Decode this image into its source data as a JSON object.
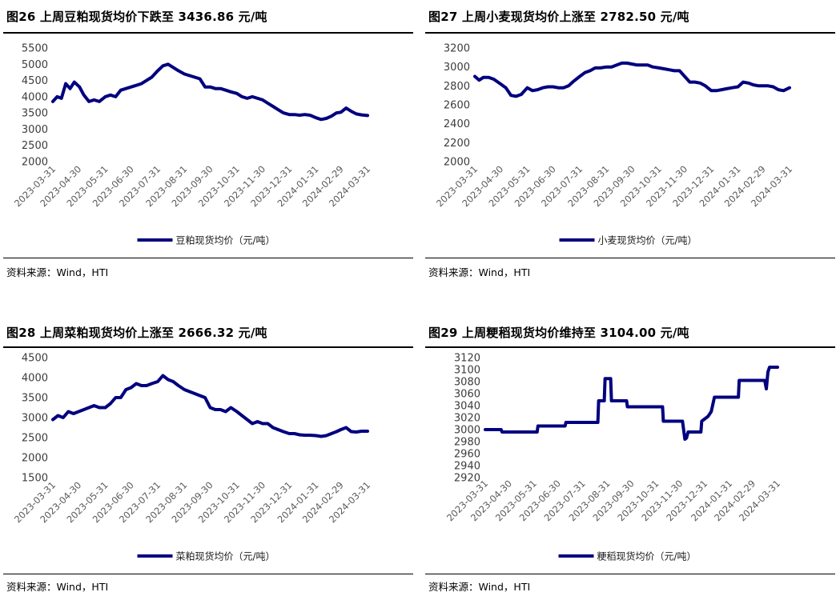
{
  "source_label": "资料来源：Wind，HTI",
  "line_color": "#00007F",
  "charts": [
    {
      "title": "图26 上周豆粕现货均价下跌至 3436.86 元/吨",
      "chart_data": {
        "type": "line",
        "title": "图26 上周豆粕现货均价下跌至 3436.86 元/吨",
        "x_tick_labels": [
          "2023-03-31",
          "2023-04-30",
          "2023-05-31",
          "2023-06-30",
          "2023-07-31",
          "2023-08-31",
          "2023-09-30",
          "2023-10-31",
          "2023-11-30",
          "2023-12-31",
          "2024-01-31",
          "2024-02-29",
          "2024-03-31"
        ],
        "y_ticks": [
          2000,
          2500,
          3000,
          3500,
          4000,
          4500,
          5000,
          5500
        ],
        "ylim": [
          2000,
          5500
        ],
        "grid": false,
        "legend_position": "bottom",
        "series": [
          {
            "name": "豆粕现货均价（元/吨）",
            "x": [
              "2023-03-31",
              "2023-04-05",
              "2023-04-10",
              "2023-04-15",
              "2023-04-20",
              "2023-04-25",
              "2023-05-01",
              "2023-05-06",
              "2023-05-12",
              "2023-05-18",
              "2023-05-24",
              "2023-05-31",
              "2023-06-06",
              "2023-06-12",
              "2023-06-18",
              "2023-06-24",
              "2023-06-30",
              "2023-07-06",
              "2023-07-12",
              "2023-07-18",
              "2023-07-24",
              "2023-07-31",
              "2023-08-06",
              "2023-08-12",
              "2023-08-18",
              "2023-08-24",
              "2023-08-31",
              "2023-09-06",
              "2023-09-12",
              "2023-09-18",
              "2023-09-24",
              "2023-09-30",
              "2023-10-06",
              "2023-10-12",
              "2023-10-18",
              "2023-10-24",
              "2023-10-31",
              "2023-11-06",
              "2023-11-12",
              "2023-11-18",
              "2023-11-24",
              "2023-11-30",
              "2023-12-06",
              "2023-12-12",
              "2023-12-18",
              "2023-12-24",
              "2023-12-31",
              "2024-01-06",
              "2024-01-12",
              "2024-01-18",
              "2024-01-24",
              "2024-01-31",
              "2024-02-06",
              "2024-02-12",
              "2024-02-18",
              "2024-02-24",
              "2024-02-29",
              "2024-03-06",
              "2024-03-12",
              "2024-03-18",
              "2024-03-24",
              "2024-03-31"
            ],
            "y": [
              3850,
              4000,
              3950,
              4400,
              4250,
              4450,
              4300,
              4050,
              3850,
              3900,
              3850,
              4000,
              4050,
              4000,
              4200,
              4250,
              4300,
              4350,
              4400,
              4500,
              4600,
              4800,
              4950,
              5000,
              4900,
              4800,
              4700,
              4650,
              4600,
              4550,
              4300,
              4300,
              4250,
              4250,
              4200,
              4150,
              4100,
              4000,
              3950,
              4000,
              3950,
              3900,
              3800,
              3700,
              3600,
              3500,
              3450,
              3450,
              3430,
              3450,
              3430,
              3350,
              3300,
              3330,
              3400,
              3500,
              3520,
              3650,
              3550,
              3470,
              3440,
              3420
            ]
          }
        ]
      }
    },
    {
      "title": "图27 上周小麦现货均价上涨至 2782.50 元/吨",
      "chart_data": {
        "type": "line",
        "title": "图27 上周小麦现货均价上涨至 2782.50 元/吨",
        "x_tick_labels": [
          "2023-03-31",
          "2023-04-30",
          "2023-05-31",
          "2023-06-30",
          "2023-07-31",
          "2023-08-31",
          "2023-09-30",
          "2023-10-31",
          "2023-11-30",
          "2023-12-31",
          "2024-01-31",
          "2024-02-29",
          "2024-03-31"
        ],
        "y_ticks": [
          2000,
          2200,
          2400,
          2600,
          2800,
          3000,
          3200
        ],
        "ylim": [
          2000,
          3200
        ],
        "grid": false,
        "legend_position": "bottom",
        "series": [
          {
            "name": "小麦现货均价（元/吨）",
            "x": [
              "2023-03-31",
              "2023-04-05",
              "2023-04-10",
              "2023-04-16",
              "2023-04-22",
              "2023-04-30",
              "2023-05-06",
              "2023-05-12",
              "2023-05-18",
              "2023-05-24",
              "2023-05-31",
              "2023-06-06",
              "2023-06-12",
              "2023-06-18",
              "2023-06-24",
              "2023-06-30",
              "2023-07-06",
              "2023-07-12",
              "2023-07-18",
              "2023-07-24",
              "2023-07-31",
              "2023-08-06",
              "2023-08-12",
              "2023-08-18",
              "2023-08-24",
              "2023-08-31",
              "2023-09-06",
              "2023-09-12",
              "2023-09-18",
              "2023-09-24",
              "2023-09-30",
              "2023-10-06",
              "2023-10-12",
              "2023-10-18",
              "2023-10-24",
              "2023-10-31",
              "2023-11-06",
              "2023-11-12",
              "2023-11-18",
              "2023-11-24",
              "2023-11-30",
              "2023-12-06",
              "2023-12-12",
              "2023-12-18",
              "2023-12-24",
              "2023-12-31",
              "2024-01-06",
              "2024-01-12",
              "2024-01-18",
              "2024-01-24",
              "2024-01-31",
              "2024-02-06",
              "2024-02-12",
              "2024-02-18",
              "2024-02-24",
              "2024-02-29",
              "2024-03-06",
              "2024-03-12",
              "2024-03-18",
              "2024-03-24",
              "2024-03-31"
            ],
            "y": [
              2900,
              2860,
              2890,
              2890,
              2870,
              2820,
              2780,
              2700,
              2690,
              2710,
              2780,
              2750,
              2760,
              2780,
              2790,
              2790,
              2780,
              2780,
              2800,
              2850,
              2900,
              2940,
              2960,
              2990,
              2990,
              3000,
              3000,
              3020,
              3040,
              3040,
              3030,
              3020,
              3020,
              3020,
              3000,
              2990,
              2980,
              2970,
              2960,
              2960,
              2900,
              2840,
              2840,
              2830,
              2800,
              2750,
              2750,
              2760,
              2770,
              2780,
              2790,
              2840,
              2830,
              2810,
              2800,
              2800,
              2800,
              2790,
              2760,
              2750,
              2780
            ]
          }
        ]
      }
    },
    {
      "title": "图28 上周菜粕现货均价上涨至 2666.32 元/吨",
      "chart_data": {
        "type": "line",
        "title": "图28 上周菜粕现货均价上涨至 2666.32 元/吨",
        "x_tick_labels": [
          "2023-03-31",
          "2023-04-30",
          "2023-05-31",
          "2023-06-30",
          "2023-07-31",
          "2023-08-31",
          "2023-09-30",
          "2023-10-31",
          "2023-11-30",
          "2023-12-31",
          "2024-01-31",
          "2024-02-29",
          "2024-03-31"
        ],
        "y_ticks": [
          1500,
          2000,
          2500,
          3000,
          3500,
          4000,
          4500
        ],
        "ylim": [
          1500,
          4500
        ],
        "grid": false,
        "legend_position": "bottom",
        "series": [
          {
            "name": "菜粕现货均价（元/吨）",
            "x": [
              "2023-03-31",
              "2023-04-06",
              "2023-04-12",
              "2023-04-18",
              "2023-04-24",
              "2023-04-30",
              "2023-05-06",
              "2023-05-12",
              "2023-05-18",
              "2023-05-24",
              "2023-05-31",
              "2023-06-06",
              "2023-06-12",
              "2023-06-18",
              "2023-06-24",
              "2023-06-30",
              "2023-07-06",
              "2023-07-12",
              "2023-07-18",
              "2023-07-24",
              "2023-07-31",
              "2023-08-06",
              "2023-08-12",
              "2023-08-18",
              "2023-08-24",
              "2023-08-31",
              "2023-09-06",
              "2023-09-12",
              "2023-09-18",
              "2023-09-24",
              "2023-09-30",
              "2023-10-06",
              "2023-10-12",
              "2023-10-18",
              "2023-10-24",
              "2023-10-31",
              "2023-11-06",
              "2023-11-12",
              "2023-11-18",
              "2023-11-24",
              "2023-11-30",
              "2023-12-06",
              "2023-12-12",
              "2023-12-18",
              "2023-12-24",
              "2023-12-31",
              "2024-01-06",
              "2024-01-12",
              "2024-01-18",
              "2024-01-24",
              "2024-01-31",
              "2024-02-06",
              "2024-02-12",
              "2024-02-18",
              "2024-02-24",
              "2024-02-29",
              "2024-03-06",
              "2024-03-12",
              "2024-03-18",
              "2024-03-24",
              "2024-03-31"
            ],
            "y": [
              2950,
              3050,
              3000,
              3150,
              3100,
              3150,
              3200,
              3250,
              3300,
              3250,
              3250,
              3350,
              3500,
              3500,
              3700,
              3750,
              3850,
              3800,
              3800,
              3850,
              3900,
              4050,
              3950,
              3900,
              3800,
              3700,
              3650,
              3600,
              3550,
              3500,
              3250,
              3200,
              3200,
              3150,
              3250,
              3150,
              3050,
              2950,
              2850,
              2900,
              2850,
              2850,
              2750,
              2700,
              2650,
              2600,
              2600,
              2570,
              2560,
              2560,
              2550,
              2530,
              2550,
              2600,
              2650,
              2700,
              2750,
              2650,
              2640,
              2660,
              2660
            ]
          }
        ]
      }
    },
    {
      "title": "图29 上周粳稻现货均价维持至 3104.00 元/吨",
      "chart_data": {
        "type": "line",
        "title": "图29 上周粳稻现货均价维持至 3104.00 元/吨",
        "x_tick_labels": [
          "2023-03-31",
          "2023-04-30",
          "2023-05-31",
          "2023-06-30",
          "2023-07-31",
          "2023-08-31",
          "2023-09-30",
          "2023-10-31",
          "2023-11-30",
          "2023-12-31",
          "2024-01-31",
          "2024-02-29",
          "2024-03-31"
        ],
        "y_ticks": [
          2920,
          2940,
          2960,
          2980,
          3000,
          3020,
          3040,
          3060,
          3080,
          3100,
          3120
        ],
        "ylim": [
          2920,
          3120
        ],
        "grid": false,
        "legend_position": "bottom",
        "series": [
          {
            "name": "粳稻现货均价（元/吨）",
            "x": [
              "2023-03-31",
              "2023-04-20",
              "2023-04-21",
              "2023-06-04",
              "2023-06-05",
              "2023-07-09",
              "2023-07-10",
              "2023-08-19",
              "2023-08-20",
              "2023-08-27",
              "2023-08-28",
              "2023-09-04",
              "2023-09-05",
              "2023-09-24",
              "2023-09-25",
              "2023-10-06",
              "2023-10-07",
              "2023-11-08",
              "2023-11-09",
              "2023-12-03",
              "2023-12-06",
              "2023-12-08",
              "2023-12-10",
              "2023-12-26",
              "2023-12-27",
              "2024-01-04",
              "2024-01-08",
              "2024-01-12",
              "2024-01-13",
              "2024-02-11",
              "2024-02-12",
              "2024-03-15",
              "2024-03-17",
              "2024-03-19",
              "2024-03-21",
              "2024-03-31"
            ],
            "y": [
              3000,
              3000,
              2996,
              2996,
              3006,
              3006,
              3012,
              3012,
              3048,
              3048,
              3085,
              3085,
              3048,
              3048,
              3038,
              3038,
              3038,
              3038,
              3014,
              3014,
              2984,
              2986,
              2996,
              2996,
              3014,
              3022,
              3030,
              3054,
              3054,
              3054,
              3082,
              3082,
              3068,
              3096,
              3104,
              3104
            ]
          }
        ]
      }
    }
  ]
}
